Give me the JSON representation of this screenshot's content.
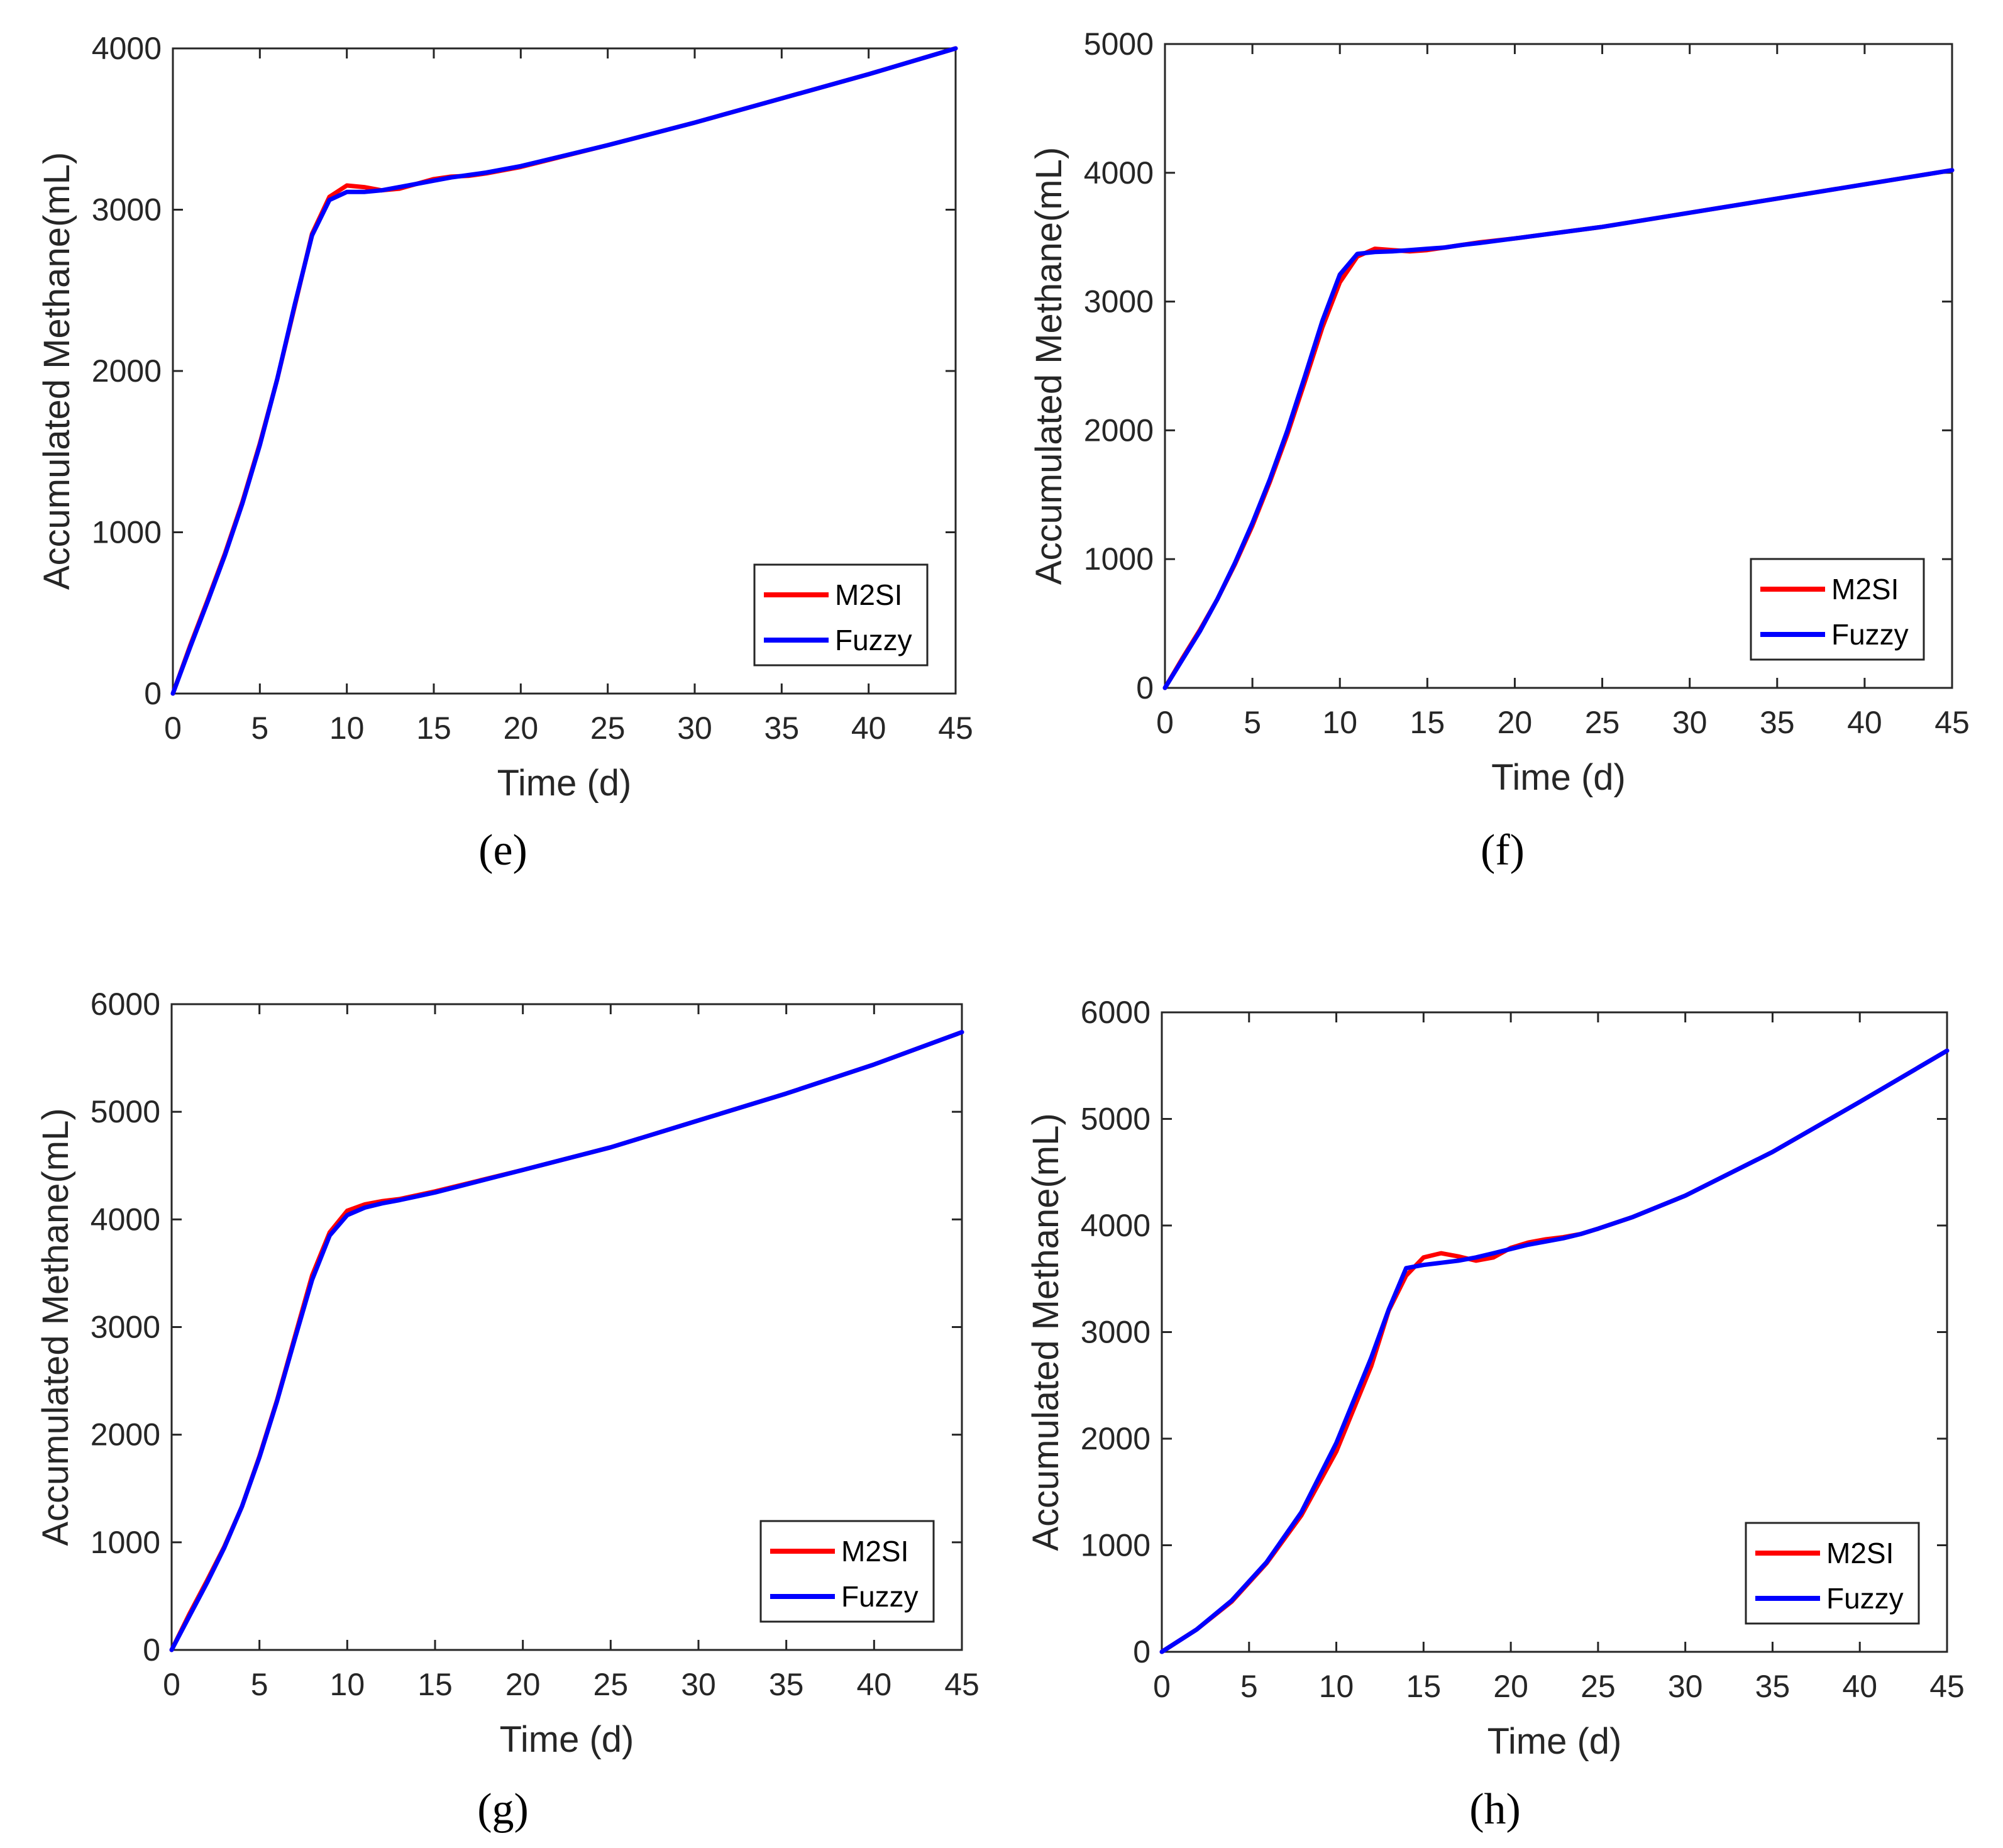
{
  "chart_data": [
    {
      "type": "line",
      "panel_label": "(e)",
      "xlabel": "Time (d)",
      "ylabel": "Accumulated Methane(mL)",
      "xlim": [
        0,
        45
      ],
      "ylim": [
        0,
        4000
      ],
      "xticks": [
        0,
        5,
        10,
        15,
        20,
        25,
        30,
        35,
        40,
        45
      ],
      "yticks": [
        0,
        1000,
        2000,
        3000,
        4000
      ],
      "grid": false,
      "legend": "bottom-right",
      "colors": {
        "M2SI": "#ff0000",
        "Fuzzy": "#0000ff"
      },
      "series": [
        {
          "name": "M2SI",
          "points": [
            [
              0,
              0
            ],
            [
              1,
              300
            ],
            [
              2,
              580
            ],
            [
              3,
              870
            ],
            [
              4,
              1190
            ],
            [
              5,
              1550
            ],
            [
              6,
              1950
            ],
            [
              7,
              2400
            ],
            [
              8,
              2850
            ],
            [
              9,
              3080
            ],
            [
              10,
              3150
            ],
            [
              11,
              3140
            ],
            [
              12,
              3120
            ],
            [
              13,
              3130
            ],
            [
              14,
              3160
            ],
            [
              15,
              3190
            ],
            [
              16,
              3205
            ],
            [
              17,
              3210
            ],
            [
              18,
              3225
            ],
            [
              20,
              3265
            ],
            [
              25,
              3400
            ],
            [
              30,
              3540
            ],
            [
              35,
              3690
            ],
            [
              40,
              3840
            ],
            [
              45,
              4000
            ]
          ]
        },
        {
          "name": "Fuzzy",
          "points": [
            [
              0,
              0
            ],
            [
              1,
              290
            ],
            [
              2,
              570
            ],
            [
              3,
              860
            ],
            [
              4,
              1180
            ],
            [
              5,
              1540
            ],
            [
              6,
              1950
            ],
            [
              7,
              2410
            ],
            [
              8,
              2840
            ],
            [
              9,
              3060
            ],
            [
              10,
              3110
            ],
            [
              11,
              3110
            ],
            [
              12,
              3120
            ],
            [
              13,
              3140
            ],
            [
              14,
              3160
            ],
            [
              15,
              3180
            ],
            [
              16,
              3200
            ],
            [
              17,
              3215
            ],
            [
              18,
              3230
            ],
            [
              20,
              3270
            ],
            [
              25,
              3400
            ],
            [
              30,
              3540
            ],
            [
              35,
              3690
            ],
            [
              40,
              3840
            ],
            [
              45,
              4000
            ]
          ]
        }
      ]
    },
    {
      "type": "line",
      "panel_label": "(f)",
      "xlabel": "Time (d)",
      "ylabel": "Accumulated Methane(mL)",
      "xlim": [
        0,
        45
      ],
      "ylim": [
        0,
        5000
      ],
      "xticks": [
        0,
        5,
        10,
        15,
        20,
        25,
        30,
        35,
        40,
        45
      ],
      "yticks": [
        0,
        1000,
        2000,
        3000,
        4000,
        5000
      ],
      "grid": false,
      "legend": "bottom-right",
      "colors": {
        "M2SI": "#ff0000",
        "Fuzzy": "#0000ff"
      },
      "series": [
        {
          "name": "M2SI",
          "points": [
            [
              0,
              0
            ],
            [
              1,
              230
            ],
            [
              2,
              450
            ],
            [
              3,
              690
            ],
            [
              4,
              960
            ],
            [
              5,
              1260
            ],
            [
              6,
              1600
            ],
            [
              7,
              1970
            ],
            [
              8,
              2380
            ],
            [
              9,
              2800
            ],
            [
              10,
              3150
            ],
            [
              11,
              3350
            ],
            [
              12,
              3410
            ],
            [
              13,
              3400
            ],
            [
              14,
              3390
            ],
            [
              15,
              3400
            ],
            [
              16,
              3420
            ],
            [
              17,
              3440
            ],
            [
              18,
              3460
            ],
            [
              20,
              3490
            ],
            [
              25,
              3580
            ],
            [
              30,
              3690
            ],
            [
              35,
              3800
            ],
            [
              40,
              3910
            ],
            [
              45,
              4020
            ]
          ]
        },
        {
          "name": "Fuzzy",
          "points": [
            [
              0,
              0
            ],
            [
              1,
              220
            ],
            [
              2,
              440
            ],
            [
              3,
              690
            ],
            [
              4,
              970
            ],
            [
              5,
              1280
            ],
            [
              6,
              1620
            ],
            [
              7,
              2000
            ],
            [
              8,
              2420
            ],
            [
              9,
              2850
            ],
            [
              10,
              3210
            ],
            [
              11,
              3370
            ],
            [
              12,
              3385
            ],
            [
              13,
              3390
            ],
            [
              14,
              3400
            ],
            [
              15,
              3410
            ],
            [
              16,
              3420
            ],
            [
              17,
              3440
            ],
            [
              18,
              3455
            ],
            [
              20,
              3490
            ],
            [
              25,
              3580
            ],
            [
              30,
              3690
            ],
            [
              35,
              3800
            ],
            [
              40,
              3910
            ],
            [
              45,
              4020
            ]
          ]
        }
      ]
    },
    {
      "type": "line",
      "panel_label": "(g)",
      "xlabel": "Time (d)",
      "ylabel": "Accumulated Methane(mL)",
      "xlim": [
        0,
        45
      ],
      "ylim": [
        0,
        6000
      ],
      "xticks": [
        0,
        5,
        10,
        15,
        20,
        25,
        30,
        35,
        40,
        45
      ],
      "yticks": [
        0,
        1000,
        2000,
        3000,
        4000,
        5000,
        6000
      ],
      "grid": false,
      "legend": "bottom-right",
      "colors": {
        "M2SI": "#ff0000",
        "Fuzzy": "#0000ff"
      },
      "series": [
        {
          "name": "M2SI",
          "points": [
            [
              0,
              0
            ],
            [
              1,
              330
            ],
            [
              2,
              640
            ],
            [
              3,
              960
            ],
            [
              4,
              1330
            ],
            [
              5,
              1800
            ],
            [
              6,
              2320
            ],
            [
              7,
              2900
            ],
            [
              8,
              3480
            ],
            [
              9,
              3880
            ],
            [
              10,
              4080
            ],
            [
              11,
              4140
            ],
            [
              12,
              4170
            ],
            [
              13,
              4190
            ],
            [
              15,
              4260
            ],
            [
              20,
              4460
            ],
            [
              25,
              4670
            ],
            [
              30,
              4920
            ],
            [
              35,
              5170
            ],
            [
              40,
              5440
            ],
            [
              45,
              5740
            ]
          ]
        },
        {
          "name": "Fuzzy",
          "points": [
            [
              0,
              0
            ],
            [
              1,
              310
            ],
            [
              2,
              620
            ],
            [
              3,
              950
            ],
            [
              4,
              1330
            ],
            [
              5,
              1790
            ],
            [
              6,
              2310
            ],
            [
              7,
              2880
            ],
            [
              8,
              3440
            ],
            [
              9,
              3850
            ],
            [
              10,
              4040
            ],
            [
              11,
              4110
            ],
            [
              12,
              4150
            ],
            [
              13,
              4180
            ],
            [
              15,
              4250
            ],
            [
              20,
              4460
            ],
            [
              25,
              4670
            ],
            [
              30,
              4920
            ],
            [
              35,
              5170
            ],
            [
              40,
              5440
            ],
            [
              45,
              5740
            ]
          ]
        }
      ]
    },
    {
      "type": "line",
      "panel_label": "(h)",
      "xlabel": "Time (d)",
      "ylabel": "Accumulated Methane(mL)",
      "xlim": [
        0,
        45
      ],
      "ylim": [
        0,
        6000
      ],
      "xticks": [
        0,
        5,
        10,
        15,
        20,
        25,
        30,
        35,
        40,
        45
      ],
      "yticks": [
        0,
        1000,
        2000,
        3000,
        4000,
        5000,
        6000
      ],
      "grid": false,
      "legend": "bottom-right",
      "colors": {
        "M2SI": "#ff0000",
        "Fuzzy": "#0000ff"
      },
      "series": [
        {
          "name": "M2SI",
          "points": [
            [
              0,
              0
            ],
            [
              2,
              210
            ],
            [
              4,
              470
            ],
            [
              6,
              830
            ],
            [
              8,
              1280
            ],
            [
              10,
              1880
            ],
            [
              12,
              2680
            ],
            [
              13,
              3200
            ],
            [
              14,
              3530
            ],
            [
              15,
              3700
            ],
            [
              16,
              3740
            ],
            [
              17,
              3710
            ],
            [
              18,
              3670
            ],
            [
              19,
              3700
            ],
            [
              20,
              3790
            ],
            [
              21,
              3840
            ],
            [
              22,
              3870
            ],
            [
              23,
              3890
            ],
            [
              24,
              3920
            ],
            [
              25,
              3970
            ],
            [
              27,
              4080
            ],
            [
              30,
              4280
            ],
            [
              35,
              4690
            ],
            [
              40,
              5160
            ],
            [
              45,
              5640
            ]
          ]
        },
        {
          "name": "Fuzzy",
          "points": [
            [
              0,
              0
            ],
            [
              2,
              210
            ],
            [
              4,
              480
            ],
            [
              6,
              840
            ],
            [
              8,
              1310
            ],
            [
              10,
              1960
            ],
            [
              12,
              2760
            ],
            [
              13,
              3210
            ],
            [
              14,
              3600
            ],
            [
              15,
              3630
            ],
            [
              16,
              3650
            ],
            [
              17,
              3670
            ],
            [
              18,
              3700
            ],
            [
              19,
              3740
            ],
            [
              20,
              3780
            ],
            [
              21,
              3820
            ],
            [
              22,
              3850
            ],
            [
              23,
              3880
            ],
            [
              24,
              3920
            ],
            [
              25,
              3970
            ],
            [
              27,
              4080
            ],
            [
              30,
              4280
            ],
            [
              35,
              4690
            ],
            [
              40,
              5160
            ],
            [
              45,
              5640
            ]
          ]
        }
      ]
    }
  ]
}
